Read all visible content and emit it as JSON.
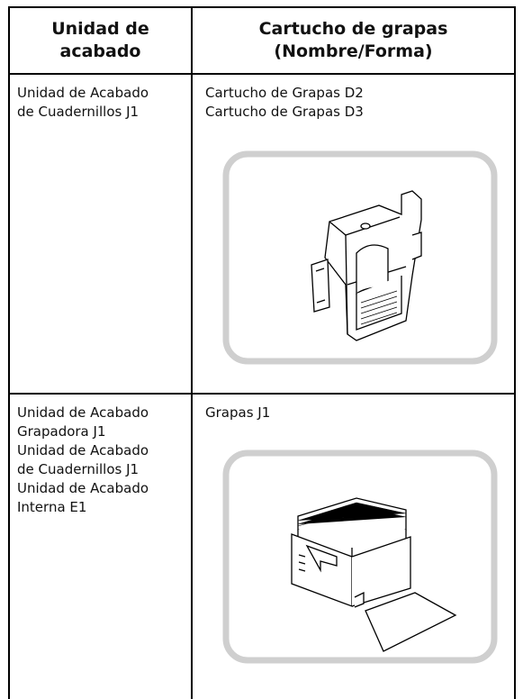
{
  "table": {
    "headers": [
      [
        "Unidad de",
        "acabado"
      ],
      [
        "Cartucho de grapas",
        "(Nombre/Forma)"
      ]
    ],
    "rows": [
      [
        [
          "Unidad de Acabado",
          "de Cuadernillos J1"
        ],
        [
          "Cartucho de Grapas D2",
          "Cartucho de Grapas D3"
        ]
      ],
      [
        [
          "Unidad de Acabado",
          "Grapadora J1",
          "Unidad de Acabado",
          "de Cuadernillos J1",
          "Unidad de Acabado",
          "Interna E1"
        ],
        [
          "Grapas J1"
        ]
      ]
    ]
  }
}
